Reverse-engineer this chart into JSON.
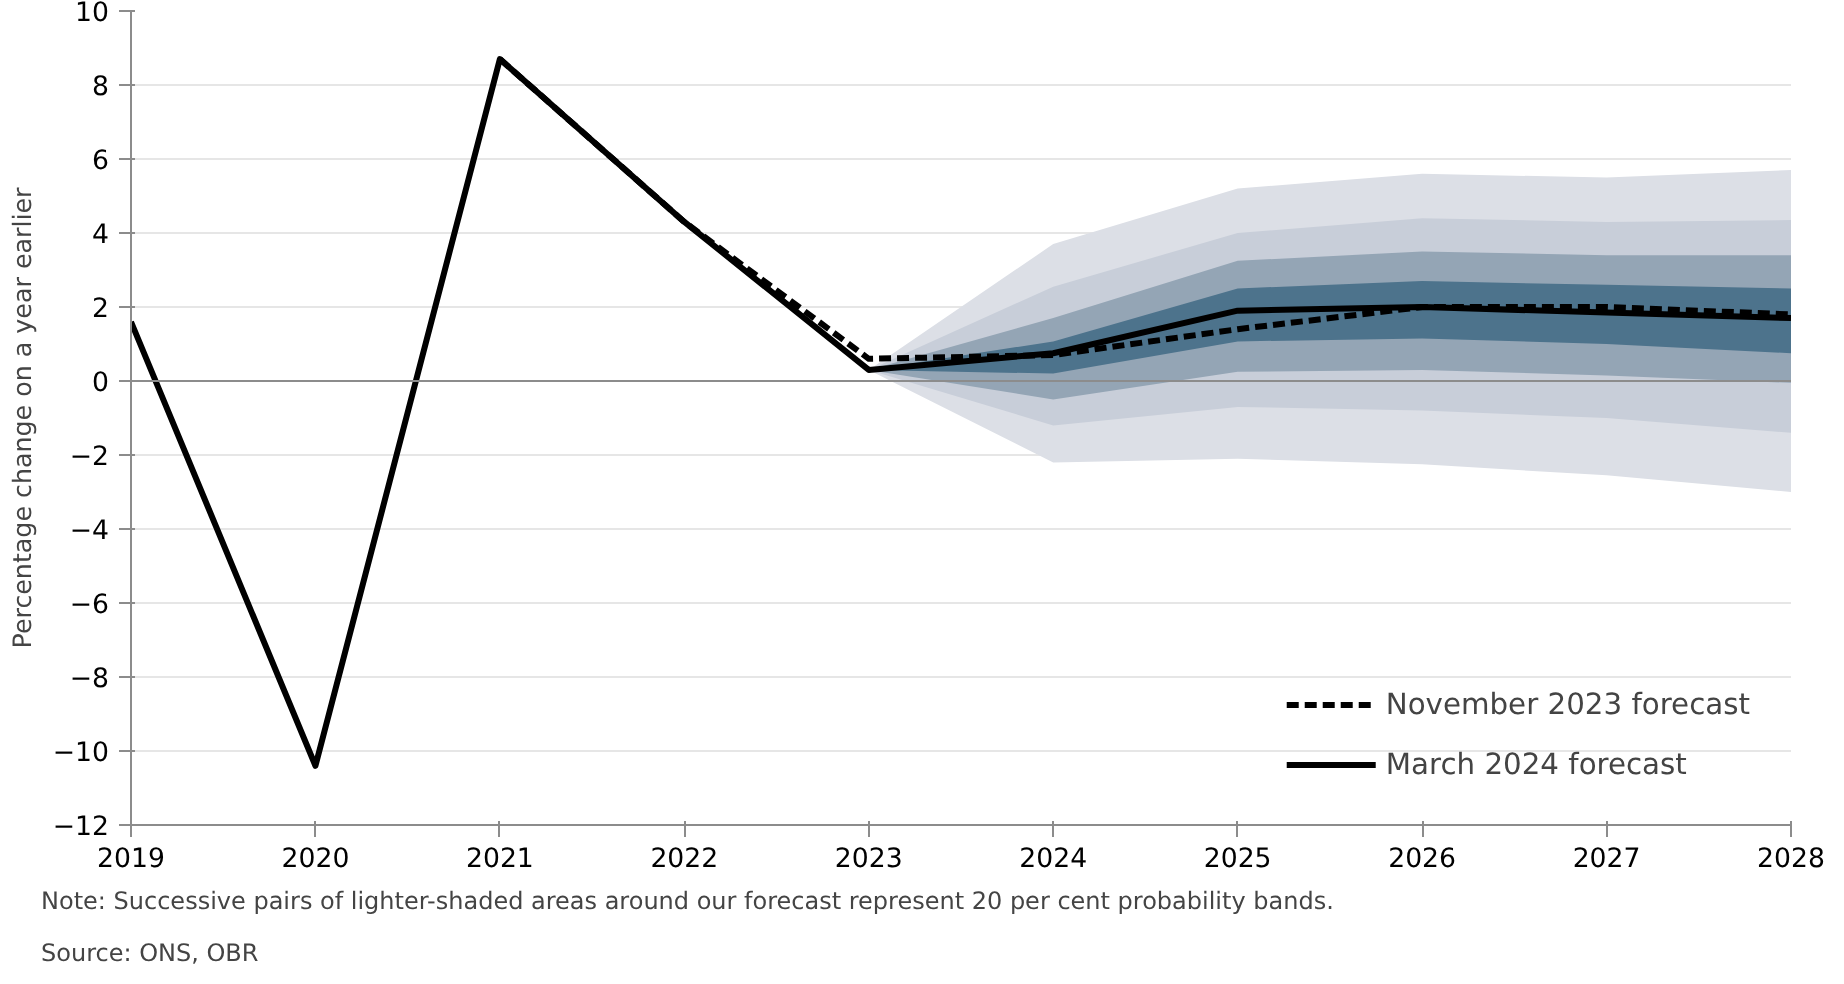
{
  "chart_data": {
    "type": "line",
    "ylabel": "Percentage change on a year earlier",
    "x": [
      2019,
      2020,
      2021,
      2022,
      2023,
      2024,
      2025,
      2026,
      2027,
      2028
    ],
    "xlim": [
      2019,
      2028
    ],
    "xticks": [
      2019,
      2020,
      2021,
      2022,
      2023,
      2024,
      2025,
      2026,
      2027,
      2028
    ],
    "ylim": [
      -12,
      10
    ],
    "yticks": [
      -12,
      -10,
      -8,
      -6,
      -4,
      -2,
      0,
      2,
      4,
      6,
      8,
      10
    ],
    "grid": "y",
    "legend": "bottom right",
    "ref_lines": [
      {
        "axis": "y",
        "value": 0,
        "color": "#8c8c8c"
      }
    ],
    "series": [
      {
        "color": "#dcdfe6",
        "x": [
          2023,
          2024,
          2025,
          2026,
          2027,
          2028
        ],
        "values": [
          null,
          null,
          null,
          null,
          null,
          null
        ],
        "lower": [
          0.3,
          -2.2,
          -2.1,
          -2.25,
          -2.55,
          -3.0
        ],
        "upper": [
          0.3,
          3.7,
          5.2,
          5.6,
          5.5,
          5.7
        ]
      },
      {
        "color": "#c8ced9",
        "x": [
          2023,
          2024,
          2025,
          2026,
          2027,
          2028
        ],
        "values": [
          null,
          null,
          null,
          null,
          null,
          null
        ],
        "lower": [
          0.3,
          -1.2,
          -0.7,
          -0.8,
          -1.0,
          -1.4
        ],
        "upper": [
          0.3,
          2.55,
          4.0,
          4.4,
          4.3,
          4.35
        ]
      },
      {
        "color": "#94a5b5",
        "x": [
          2023,
          2024,
          2025,
          2026,
          2027,
          2028
        ],
        "values": [
          null,
          null,
          null,
          null,
          null,
          null
        ],
        "lower": [
          0.3,
          -0.5,
          0.25,
          0.3,
          0.15,
          -0.05
        ],
        "upper": [
          0.3,
          1.7,
          3.25,
          3.5,
          3.4,
          3.4
        ]
      },
      {
        "color": "#4d738c",
        "x": [
          2023,
          2024,
          2025,
          2026,
          2027,
          2028
        ],
        "values": [
          null,
          null,
          null,
          null,
          null,
          null
        ],
        "lower": [
          0.3,
          0.2,
          1.07,
          1.15,
          1.0,
          0.75
        ],
        "upper": [
          0.3,
          1.07,
          2.5,
          2.7,
          2.6,
          2.5
        ]
      },
      {
        "name": "November 2023 forecast",
        "color": "#000000",
        "line_style": "dashed",
        "x": [
          2021,
          2022,
          2023,
          2024,
          2025,
          2026,
          2027,
          2028
        ],
        "values": [
          8.7,
          4.3,
          0.6,
          0.7,
          1.4,
          2.0,
          2.0,
          1.8
        ]
      },
      {
        "name": "March 2024 forecast",
        "color": "#000000",
        "line_style": "solid",
        "values": [
          1.6,
          -10.4,
          8.7,
          4.3,
          0.3,
          0.75,
          1.9,
          2.0,
          1.85,
          1.7
        ]
      }
    ],
    "annotations": [
      "Note: Successive pairs of lighter-shaded areas around our forecast represent 20 per cent probability bands.",
      "Source: ONS, OBR"
    ]
  }
}
